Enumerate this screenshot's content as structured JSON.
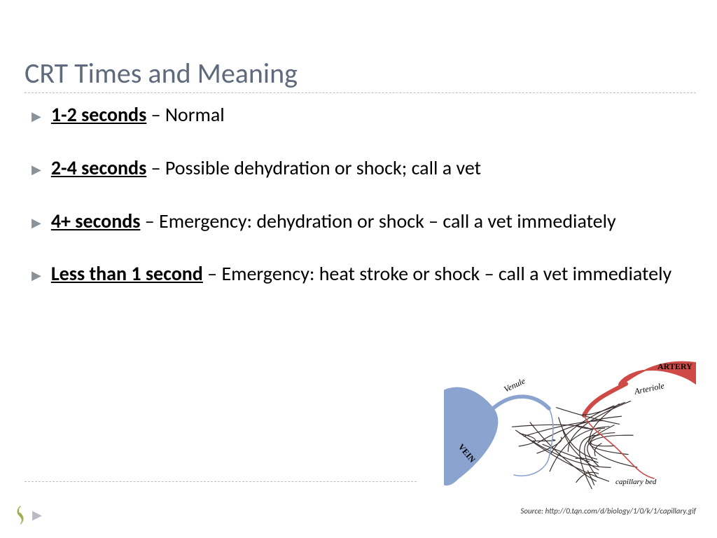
{
  "title": "CRT Times and Meaning",
  "bullets": [
    {
      "term": "1-2 seconds",
      "desc": " – Normal"
    },
    {
      "term": "2-4 seconds",
      "desc": " – Possible dehydration or shock; call a vet"
    },
    {
      "term": "4+ seconds",
      "desc": " – Emergency: dehydration or shock – call a vet immediately"
    },
    {
      "term": "Less than 1 second",
      "desc": " – Emergency: heat stroke or shock – call a vet immediately"
    }
  ],
  "figure": {
    "labels": {
      "artery": "ARTERY",
      "arteriole": "Arteriole",
      "venule": "Venule",
      "vein": "VEIN",
      "capillary": "capillary bed"
    },
    "colors": {
      "artery": "#cf4a46",
      "vein": "#8aa3cf",
      "capillary": "#3a2f2f",
      "background": "#ffffff"
    },
    "line_width_main": 10,
    "line_width_cap": 1.2
  },
  "source": "Source: http://0.tqn.com/d/biology/1/0/k/1/capillary.gif",
  "theme": {
    "title_color": "#5f6a7d",
    "bullet_marker_color": "#8a9299",
    "text_color": "#000000",
    "divider_color": "#bfbfbf",
    "logo_color": "#9bb04d",
    "title_fontsize": 40,
    "body_fontsize": 28
  }
}
